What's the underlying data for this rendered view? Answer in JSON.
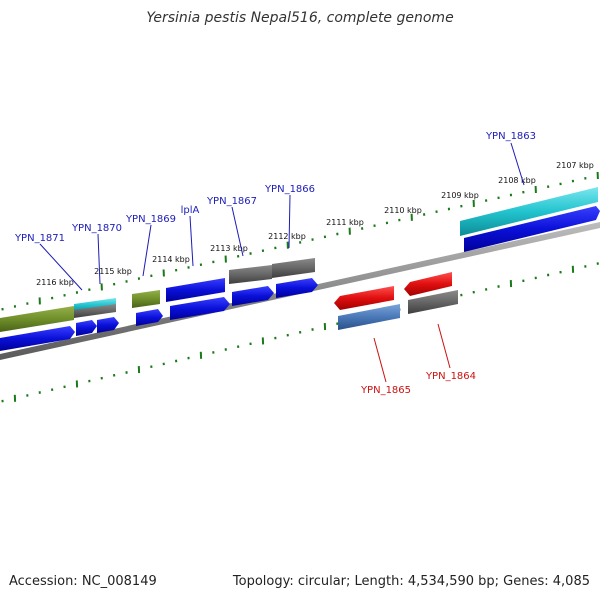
{
  "title": "Yersinia pestis Nepal516, complete genome",
  "footer": {
    "accession": "Accession: NC_008149",
    "summary": "Topology: circular; Length: 4,534,590 bp; Genes: 4,085"
  },
  "colors": {
    "tick": "#1a7a1a",
    "backbone": "#888888",
    "blue": "#0a10d8",
    "gray": "#666666",
    "olive": "#6f8f2a",
    "cyan": "#22c4cf",
    "red": "#e00f0f",
    "steel": "#4a78b8",
    "label_blue": "#1c1cb8",
    "label_red": "#cc1111"
  },
  "kbp_labels": [
    "2107 kbp",
    "2108 kbp",
    "2109 kbp",
    "2110 kbp",
    "2111 kbp",
    "2112 kbp",
    "2113 kbp",
    "2114 kbp",
    "2115 kbp",
    "2116 kbp"
  ],
  "gene_labels": [
    {
      "name": "YPN_1863",
      "strand": "top"
    },
    {
      "name": "YPN_1866",
      "strand": "top"
    },
    {
      "name": "YPN_1867",
      "strand": "top"
    },
    {
      "name": "lplA",
      "strand": "top"
    },
    {
      "name": "YPN_1869",
      "strand": "top"
    },
    {
      "name": "YPN_1870",
      "strand": "top"
    },
    {
      "name": "YPN_1871",
      "strand": "top"
    },
    {
      "name": "YPN_1865",
      "strand": "bottom"
    },
    {
      "name": "YPN_1864",
      "strand": "bottom"
    }
  ]
}
